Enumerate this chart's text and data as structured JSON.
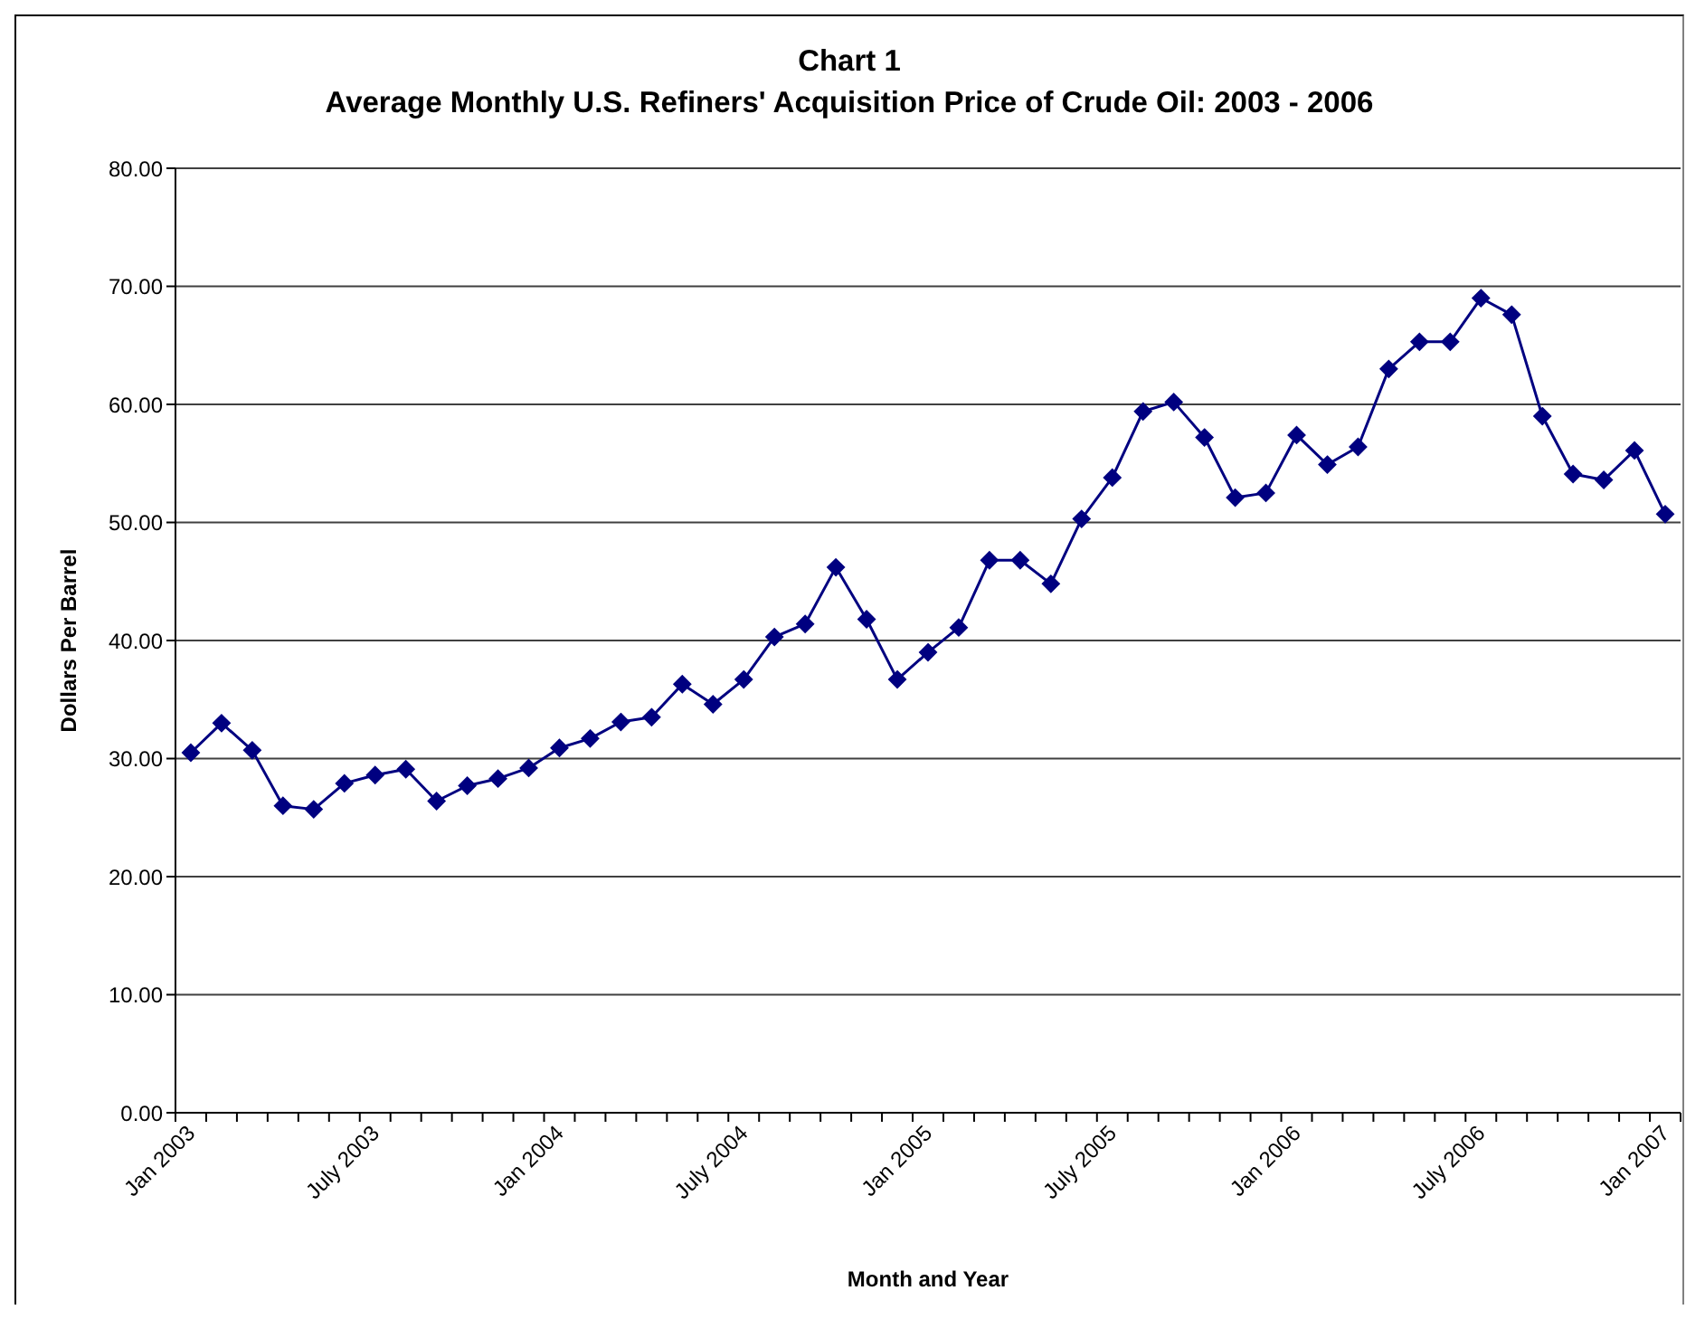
{
  "chart_data": {
    "type": "line",
    "title": "Chart 1",
    "subtitle": "Average Monthly U.S. Refiners' Acquisition Price of Crude Oil: 2003 - 2006",
    "xlabel": "Month and Year",
    "ylabel": "Dollars Per Barrel",
    "categories": [
      "Jan 2003",
      null,
      null,
      null,
      null,
      null,
      "July 2003",
      null,
      null,
      null,
      null,
      null,
      "Jan 2004",
      null,
      null,
      null,
      null,
      null,
      "July 2004",
      null,
      null,
      null,
      null,
      null,
      "Jan 2005",
      null,
      null,
      null,
      null,
      null,
      "July 2005",
      null,
      null,
      null,
      null,
      null,
      "Jan 2006",
      null,
      null,
      null,
      null,
      null,
      "July 2006",
      null,
      null,
      null,
      null,
      null,
      "Jan 2007"
    ],
    "series": [
      {
        "color": "#000080",
        "values": [
          30.5,
          33.0,
          30.7,
          26.0,
          25.7,
          27.9,
          28.6,
          29.1,
          26.4,
          27.7,
          28.3,
          29.2,
          30.9,
          31.7,
          33.1,
          33.5,
          36.3,
          34.6,
          36.7,
          40.3,
          41.4,
          46.2,
          41.8,
          36.7,
          39.0,
          41.1,
          46.8,
          46.8,
          44.8,
          50.3,
          53.8,
          59.4,
          60.2,
          57.2,
          52.1,
          52.5,
          57.4,
          54.9,
          56.4,
          63.0,
          65.3,
          65.3,
          69.0,
          67.6,
          59.0,
          54.1,
          53.6,
          56.1,
          50.7
        ]
      }
    ],
    "ylim": [
      0,
      80
    ],
    "yticks": [
      {
        "value": 0,
        "label": "0.00"
      },
      {
        "value": 10,
        "label": "10.00"
      },
      {
        "value": 20,
        "label": "20.00"
      },
      {
        "value": 30,
        "label": "30.00"
      },
      {
        "value": 40,
        "label": "40.00"
      },
      {
        "value": 50,
        "label": "50.00"
      },
      {
        "value": 60,
        "label": "60.00"
      },
      {
        "value": 70,
        "label": "70.00"
      },
      {
        "value": 80,
        "label": "80.00"
      }
    ],
    "grid": "y",
    "marker": "diamond",
    "line_style": "solid"
  }
}
